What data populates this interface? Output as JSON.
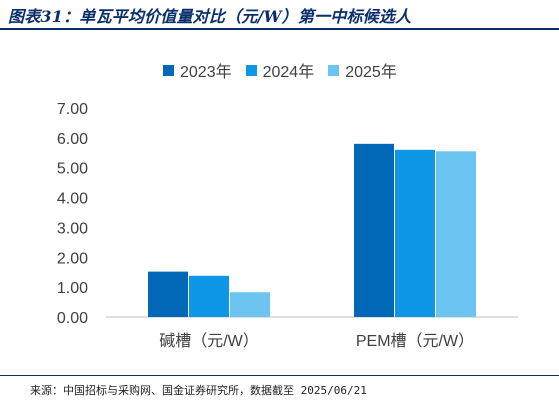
{
  "title": "图表31：单瓦平均价值量对比（元/W）第一中标候选人",
  "source": "来源：中国招标与采购网、国金证券研究所，数据截至 2025/06/21",
  "colors": {
    "title": "#0b2f6b",
    "axis": "#bfbfbf",
    "text": "#404040"
  },
  "chart_data": {
    "type": "bar",
    "categories": [
      "碱槽（元/W）",
      "PEM槽（元/W）"
    ],
    "series": [
      {
        "name": "2023年",
        "values": [
          1.52,
          5.8
        ],
        "color": "#0068b7"
      },
      {
        "name": "2024年",
        "values": [
          1.38,
          5.6
        ],
        "color": "#0d97e6"
      },
      {
        "name": "2025年",
        "values": [
          0.83,
          5.55
        ],
        "color": "#6cc4f1"
      }
    ],
    "yticks": [
      "0.00",
      "1.00",
      "2.00",
      "3.00",
      "4.00",
      "5.00",
      "6.00",
      "7.00"
    ],
    "ylim": [
      0,
      7
    ],
    "grid": false,
    "legend_position": "top-center"
  }
}
